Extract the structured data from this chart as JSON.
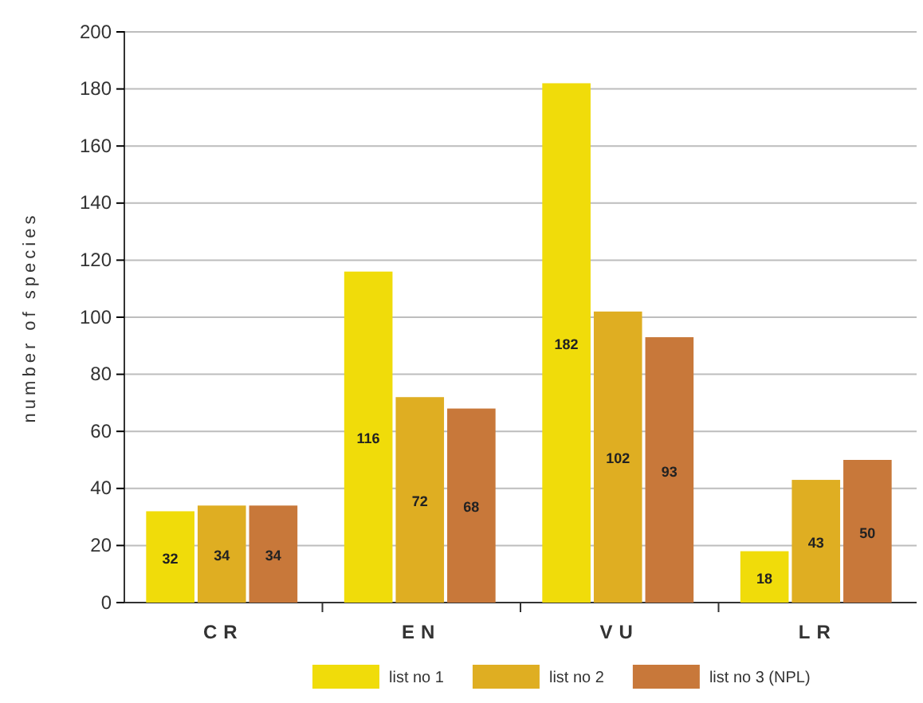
{
  "chart_data": {
    "type": "bar",
    "ylabel": "number of species",
    "categories": [
      "CR",
      "EN",
      "VU",
      "LR"
    ],
    "series": [
      {
        "name": "list no 1",
        "color": "#f0dc0a",
        "values": [
          32,
          116,
          182,
          18
        ]
      },
      {
        "name": "list no 2",
        "color": "#dfae22",
        "values": [
          34,
          72,
          102,
          43
        ]
      },
      {
        "name": "list no 3 (NPL)",
        "color": "#c8783a",
        "values": [
          34,
          68,
          93,
          50
        ]
      }
    ],
    "ylim": [
      0,
      200
    ],
    "yticks": [
      0,
      20,
      40,
      60,
      80,
      100,
      120,
      140,
      160,
      180,
      200
    ],
    "grid": "y",
    "legend": "bottom",
    "data_labels": true
  }
}
